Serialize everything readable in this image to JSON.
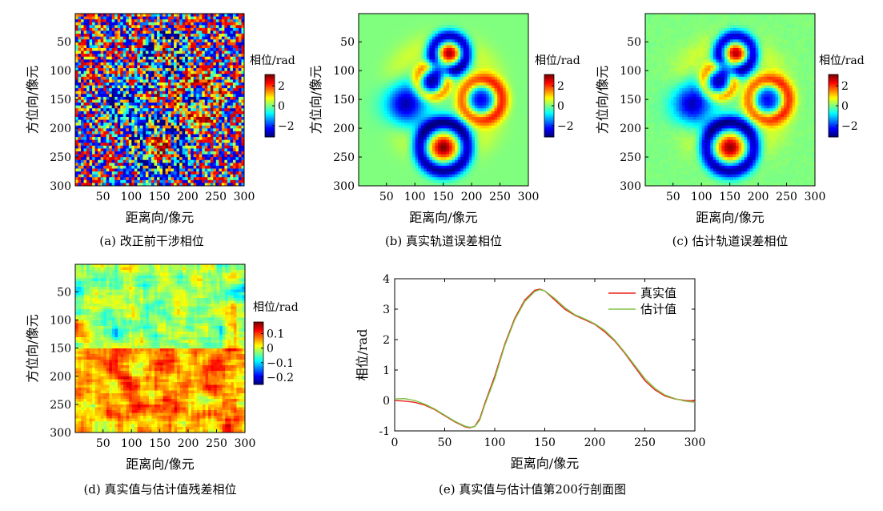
{
  "chart_data": [
    {
      "id": "a",
      "type": "heatmap",
      "caption": "(a) 改正前干涉相位",
      "xlabel": "距离向/像元",
      "ylabel": "方位向/像元",
      "xticks": [
        50,
        100,
        150,
        200,
        250,
        300
      ],
      "yticks": [
        50,
        100,
        150,
        200,
        250,
        300
      ],
      "xlim": [
        1,
        300
      ],
      "ylim": [
        1,
        300
      ],
      "colorbar": {
        "title": "相位/rad",
        "ticks": [
          "2",
          "0",
          "−2"
        ],
        "tick_values": [
          2,
          0,
          -2
        ],
        "range": [
          -3.14,
          3.14
        ]
      }
    },
    {
      "id": "b",
      "type": "heatmap",
      "caption": "(b) 真实轨道误差相位",
      "xlabel": "距离向/像元",
      "ylabel": "方位向/像元",
      "xticks": [
        50,
        100,
        150,
        200,
        250,
        300
      ],
      "yticks": [
        50,
        100,
        150,
        200,
        250,
        300
      ],
      "xlim": [
        1,
        300
      ],
      "ylim": [
        1,
        300
      ],
      "colorbar": {
        "title": "相位/rad",
        "ticks": [
          "2",
          "0",
          "−2"
        ],
        "tick_values": [
          2,
          0,
          -2
        ],
        "range": [
          -3.14,
          3.14
        ]
      }
    },
    {
      "id": "c",
      "type": "heatmap",
      "caption": "(c) 估计轨道误差相位",
      "xlabel": "距离向/像元",
      "ylabel": "方位向/像元",
      "xticks": [
        50,
        100,
        150,
        200,
        250,
        300
      ],
      "yticks": [
        50,
        100,
        150,
        200,
        250,
        300
      ],
      "xlim": [
        1,
        300
      ],
      "ylim": [
        1,
        300
      ],
      "colorbar": {
        "title": "相位/rad",
        "ticks": [
          "2",
          "0",
          "−2"
        ],
        "tick_values": [
          2,
          0,
          -2
        ],
        "range": [
          -3.14,
          3.14
        ]
      }
    },
    {
      "id": "d",
      "type": "heatmap",
      "caption": "(d) 真实值与估计值残差相位",
      "xlabel": "距离向/像元",
      "ylabel": "方位向/像元",
      "xticks": [
        50,
        100,
        150,
        200,
        250,
        300
      ],
      "yticks": [
        50,
        100,
        150,
        200,
        250,
        300
      ],
      "xlim": [
        1,
        300
      ],
      "ylim": [
        1,
        300
      ],
      "colorbar": {
        "title": "相位/rad",
        "ticks": [
          "0.1",
          "0",
          "−0.1",
          "−0.2"
        ],
        "tick_values": [
          0.1,
          0,
          -0.1,
          -0.2
        ],
        "range": [
          -0.25,
          0.18
        ]
      }
    },
    {
      "id": "e",
      "type": "line",
      "caption": "(e) 真实值与估计值第200行剖面图",
      "xlabel": "距离向/像元",
      "ylabel": "相位/rad",
      "xlim": [
        0,
        300
      ],
      "ylim": [
        -1,
        4
      ],
      "xticks": [
        0,
        50,
        100,
        150,
        200,
        250,
        300
      ],
      "yticks": [
        -1,
        0,
        1,
        2,
        3,
        4
      ],
      "legend": "top-right",
      "x": [
        0,
        10,
        20,
        30,
        40,
        50,
        60,
        70,
        75,
        80,
        85,
        90,
        100,
        110,
        120,
        130,
        140,
        145,
        150,
        160,
        170,
        180,
        190,
        200,
        210,
        220,
        230,
        240,
        250,
        260,
        270,
        280,
        290,
        300
      ],
      "series": [
        {
          "name": "真实值",
          "color": "#e8231b",
          "values": [
            0.0,
            -0.02,
            -0.06,
            -0.15,
            -0.3,
            -0.5,
            -0.7,
            -0.86,
            -0.9,
            -0.85,
            -0.6,
            -0.1,
            0.8,
            1.85,
            2.7,
            3.3,
            3.62,
            3.66,
            3.6,
            3.3,
            3.0,
            2.8,
            2.65,
            2.5,
            2.25,
            1.95,
            1.55,
            1.1,
            0.65,
            0.35,
            0.15,
            0.05,
            0.0,
            -0.02
          ]
        },
        {
          "name": "估计值",
          "color": "#7dc242",
          "values": [
            0.05,
            0.06,
            0.0,
            -0.12,
            -0.28,
            -0.48,
            -0.68,
            -0.84,
            -0.88,
            -0.86,
            -0.65,
            -0.15,
            0.72,
            1.8,
            2.65,
            3.25,
            3.58,
            3.64,
            3.6,
            3.35,
            3.05,
            2.82,
            2.68,
            2.52,
            2.3,
            1.98,
            1.58,
            1.15,
            0.72,
            0.4,
            0.18,
            0.06,
            -0.02,
            -0.06
          ]
        }
      ]
    }
  ]
}
